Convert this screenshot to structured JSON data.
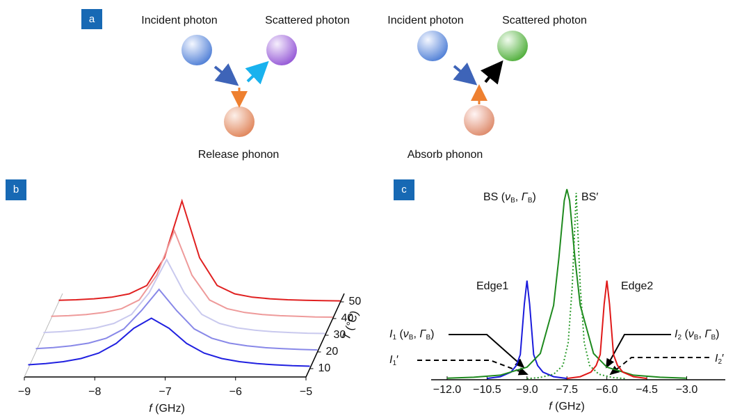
{
  "panel_labels": [
    "a",
    "b",
    "c"
  ],
  "diagram": {
    "left": {
      "incident": "Incident photon",
      "scattered": "Scattered photon",
      "phonon": "Release phonon"
    },
    "right": {
      "incident": "Incident photon",
      "scattered": "Scattered photon",
      "phonon": "Absorb phonon"
    }
  },
  "chart_data": [
    {
      "type": "waterfall",
      "xlabel": [
        "f",
        " (GHz)"
      ],
      "zlabel": [
        "T",
        " (°C)"
      ],
      "x": [
        -9,
        -8.75,
        -8.5,
        -8.25,
        -8,
        -7.75,
        -7.5,
        -7.25,
        -7,
        -6.75,
        -6.5,
        -6.25,
        -6,
        -5.75,
        -5.5,
        -5.25,
        -5
      ],
      "xlim": [
        -9,
        -5
      ],
      "xticks": [
        {
          "value": -9,
          "label": "−9"
        },
        {
          "value": -8,
          "label": "−8"
        },
        {
          "value": -7,
          "label": "−7"
        },
        {
          "value": -6,
          "label": "−6"
        },
        {
          "value": -5,
          "label": "−5"
        }
      ],
      "zlim": [
        5,
        55
      ],
      "zticks": [
        10,
        20,
        30,
        40,
        50
      ],
      "ylim": [
        0,
        1
      ],
      "series": [
        {
          "z": 50,
          "color": "#e02020",
          "values": [
            0.016,
            0.021,
            0.03,
            0.046,
            0.079,
            0.162,
            0.437,
            1.0,
            0.437,
            0.162,
            0.079,
            0.046,
            0.03,
            0.021,
            0.016,
            0.012,
            0.01
          ]
        },
        {
          "z": 40,
          "color": "#ee9a9a",
          "values": [
            0.022,
            0.028,
            0.04,
            0.06,
            0.098,
            0.184,
            0.43,
            0.87,
            0.43,
            0.184,
            0.098,
            0.06,
            0.04,
            0.028,
            0.022,
            0.016,
            0.014
          ]
        },
        {
          "z": 30,
          "color": "#c9c9ee",
          "values": [
            0.027,
            0.035,
            0.05,
            0.073,
            0.117,
            0.206,
            0.42,
            0.75,
            0.42,
            0.206,
            0.117,
            0.073,
            0.05,
            0.035,
            0.027,
            0.02,
            0.017
          ]
        },
        {
          "z": 20,
          "color": "#8888e8",
          "values": [
            0.033,
            0.043,
            0.06,
            0.087,
            0.136,
            0.228,
            0.41,
            0.62,
            0.41,
            0.228,
            0.136,
            0.087,
            0.06,
            0.043,
            0.033,
            0.025,
            0.02
          ]
        },
        {
          "z": 10,
          "color": "#2020e0",
          "values": [
            0.038,
            0.05,
            0.069,
            0.1,
            0.154,
            0.25,
            0.4,
            0.5,
            0.4,
            0.25,
            0.154,
            0.1,
            0.069,
            0.05,
            0.038,
            0.029,
            0.024
          ]
        }
      ]
    },
    {
      "type": "line",
      "xlabel": [
        "f",
        " (GHz)"
      ],
      "xlim": [
        -12.6,
        -1.55
      ],
      "xticks": [
        {
          "value": -12,
          "label": "−12.0"
        },
        {
          "value": -10.5,
          "label": "−10.5"
        },
        {
          "value": -9,
          "label": "−9.0"
        },
        {
          "value": -7.5,
          "label": "−7.5"
        },
        {
          "value": -6,
          "label": "−6.0"
        },
        {
          "value": -4.5,
          "label": "−4.5"
        },
        {
          "value": -3,
          "label": "−3.0"
        }
      ],
      "ylim": [
        0,
        1
      ],
      "series": [
        {
          "name": "Edge1",
          "color": "#1a1adc",
          "x": [
            -10.5,
            -10,
            -9.6,
            -9.4,
            -9.25,
            -9.1,
            -9,
            -8.9,
            -8.75,
            -8.6,
            -8.4,
            -8,
            -7.5
          ],
          "values": [
            0.007,
            0.016,
            0.04,
            0.075,
            0.132,
            0.397,
            0.52,
            0.397,
            0.132,
            0.075,
            0.04,
            0.016,
            0.007
          ]
        },
        {
          "name": "BS",
          "color": "#1e8a1e",
          "x": [
            -12,
            -11,
            -10,
            -9,
            -8.5,
            -8,
            -7.8,
            -7.6,
            -7.5,
            -7.4,
            -7.2,
            -7,
            -6.5,
            -6,
            -5,
            -4,
            -3
          ],
          "values": [
            0.008,
            0.013,
            0.024,
            0.066,
            0.138,
            0.39,
            0.64,
            0.94,
            1,
            0.94,
            0.64,
            0.39,
            0.138,
            0.066,
            0.024,
            0.013,
            0.008
          ]
        },
        {
          "name": "BS′",
          "color": "#2a9a2a",
          "dotted": true,
          "x": [
            -9,
            -8.5,
            -8,
            -7.65,
            -7.45,
            -7.3,
            -7.15,
            -7,
            -6.85,
            -6.65,
            -6.3,
            -5.8,
            -5.3
          ],
          "values": [
            0.006,
            0.012,
            0.029,
            0.075,
            0.196,
            0.49,
            0.98,
            0.49,
            0.196,
            0.075,
            0.029,
            0.012,
            0.006
          ]
        },
        {
          "name": "Edge2",
          "color": "#e01818",
          "x": [
            -7.5,
            -7,
            -6.6,
            -6.4,
            -6.25,
            -6.1,
            -6,
            -5.9,
            -5.75,
            -5.6,
            -5.4,
            -5,
            -4.5
          ],
          "values": [
            0.007,
            0.016,
            0.04,
            0.075,
            0.132,
            0.397,
            0.52,
            0.397,
            0.132,
            0.075,
            0.04,
            0.016,
            0.007
          ]
        }
      ],
      "bs_label": [
        " (",
        "ν",
        "B",
        ", ",
        "Γ",
        "B",
        ")"
      ],
      "i1_label": [
        "I",
        "1",
        " (",
        "ν",
        "B",
        ", ",
        "Γ",
        "B",
        ")"
      ],
      "i1p_label": [
        "I",
        "1",
        "′"
      ],
      "i2_label": [
        "I",
        "2",
        " (",
        "ν",
        "B",
        ", ",
        "Γ",
        "B",
        ")"
      ],
      "i2p_label": [
        "I",
        "2",
        "′"
      ]
    }
  ]
}
